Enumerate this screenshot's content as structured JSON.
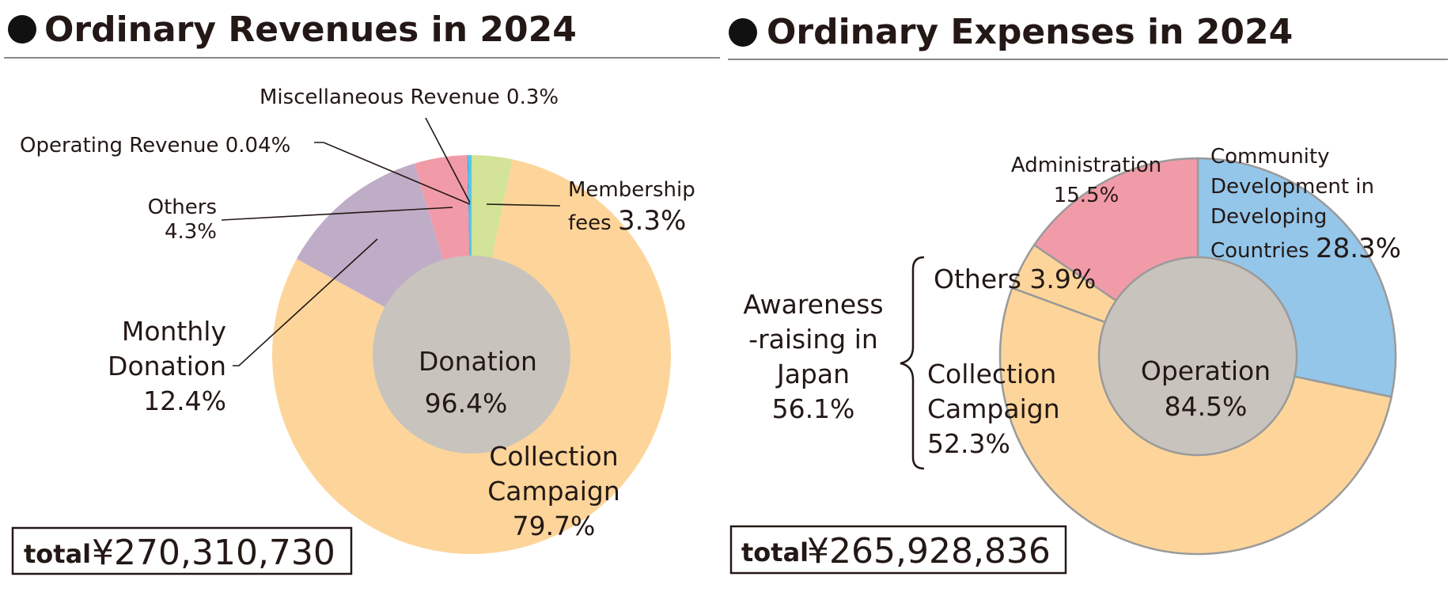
{
  "chart_data": [
    {
      "type": "pie",
      "title": "Ordinary Revenues in 2024",
      "inner": {
        "label": "Donation",
        "value": 96.4,
        "value_text": "96.4%"
      },
      "slices": [
        {
          "key": "membership",
          "label": "Membership fees",
          "value": 3.3,
          "value_text": "3.3%",
          "color": "#d3e397"
        },
        {
          "key": "collection",
          "label": "Collection Campaign",
          "value": 79.7,
          "value_text": "79.7%",
          "color": "#fdd59a"
        },
        {
          "key": "monthly",
          "label": "Monthly Donation",
          "value": 12.4,
          "value_text": "12.4%",
          "color": "#bfadc7"
        },
        {
          "key": "others",
          "label": "Others",
          "value": 4.3,
          "value_text": "4.3%",
          "color": "#f29ba8"
        },
        {
          "key": "operating",
          "label": "Operating Revenue",
          "value": 0.04,
          "value_text": "0.04%",
          "color": "#1b78c8"
        },
        {
          "key": "misc",
          "label": "Miscellaneous Revenue",
          "value": 0.3,
          "value_text": "0.3%",
          "color": "#55c5e8"
        }
      ],
      "total_label": "total",
      "total_value": "¥270,310,730"
    },
    {
      "type": "pie",
      "title": "Ordinary Expenses in 2024",
      "inner": {
        "label": "Operation",
        "value": 84.5,
        "value_text": "84.5%"
      },
      "group": {
        "label": "Awareness -raising in Japan",
        "value": 56.1,
        "value_text": "56.1%"
      },
      "slices": [
        {
          "key": "community",
          "label": "Community Development in Developing Countries",
          "value": 28.3,
          "value_text": "28.3%",
          "color": "#94c6ea"
        },
        {
          "key": "collection",
          "label": "Collection Campaign",
          "value": 52.3,
          "value_text": "52.3%",
          "color": "#fdd59a"
        },
        {
          "key": "others",
          "label": "Others",
          "value": 3.9,
          "value_text": "3.9%",
          "color": "#fdd59a"
        },
        {
          "key": "admin",
          "label": "Administration",
          "value": 15.5,
          "value_text": "15.5%",
          "color": "#f29ba8"
        }
      ],
      "total_label": "total",
      "total_value": "¥265,928,836"
    }
  ],
  "colors": {
    "inner_disc": "#c9c3bd",
    "text": "#231815",
    "rule": "#888888"
  }
}
